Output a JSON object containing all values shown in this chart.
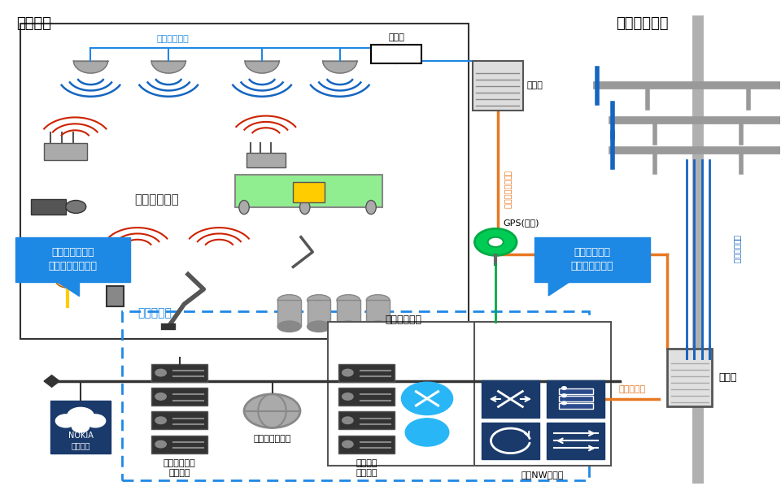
{
  "title_indoor": "屋内配置",
  "title_outdoor": "屋外アンテナ",
  "bg_color": "#ffffff",
  "blue_dark": "#1a3a6b",
  "blue_bright": "#1e88e5",
  "orange": "#e87722",
  "green": "#00aa44",
  "gray_light": "#cccccc",
  "gray_dark": "#555555",
  "label_indoor_antenna": "屋内アンテナ",
  "label_coax": "同軸ケーブル",
  "label_distributor": "分配器",
  "label_base_station_indoor": "基地局",
  "label_base_station_outdoor": "基地局",
  "label_gps": "GPS(屋外)",
  "label_customer_range": "お客様範囲",
  "label_server_room": "サーバルーム",
  "label_cloud_services": "各種クラウド\nサービス",
  "label_internet": "インターネット",
  "label_internal_systems": "各種社内\nシステム",
  "label_core_nw": "コアNW装置群",
  "label_fiber": "光ケーブル",
  "label_coax_cable_v": "同軸ケーブル",
  "label_data_local": "データ通信は\n全て構内で完結",
  "label_maint": "メンテと監視は\nクラウドから提供",
  "label_fiber_cable": "ファイバケーブル"
}
